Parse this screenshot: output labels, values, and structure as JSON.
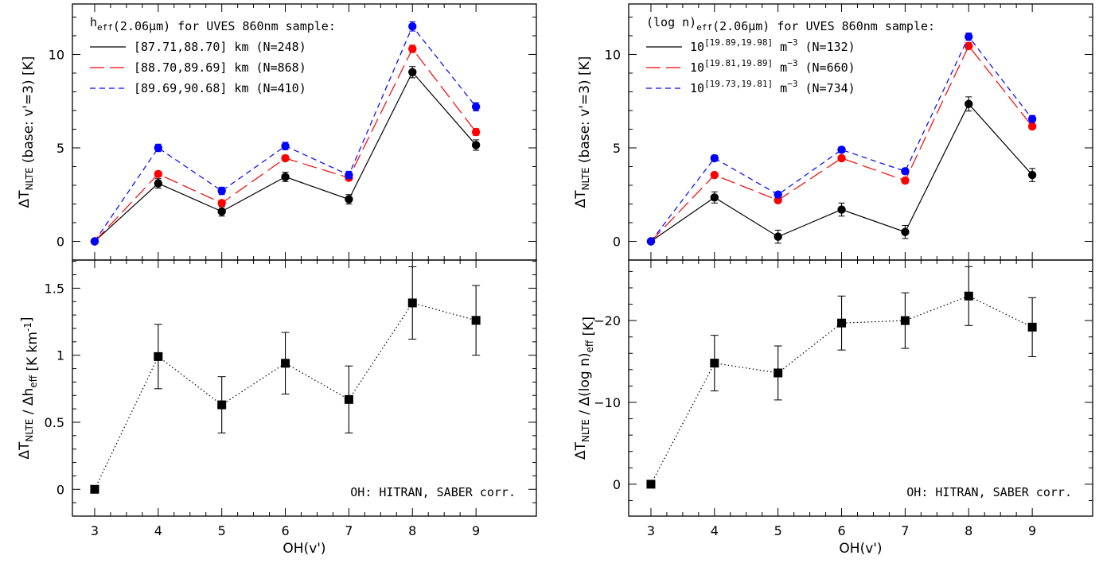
{
  "chart_data": [
    {
      "id": "left-top",
      "type": "line",
      "ylabel": "ΔT_NLTE (base: v'=3) [K]",
      "ylim": [
        -1.0,
        12.7
      ],
      "yticks": [
        0,
        5,
        10
      ],
      "x": [
        3,
        4,
        5,
        6,
        7,
        8,
        9
      ],
      "legend_title": "h_eff(2.06μm) for UVES 860nm sample:",
      "series": [
        {
          "name": "[87.71,88.70] km (N=248)",
          "color": "#000000",
          "dash": "solid",
          "values": [
            0.0,
            3.1,
            1.6,
            3.45,
            2.25,
            9.05,
            5.15
          ],
          "errors": [
            0.12,
            0.25,
            0.25,
            0.25,
            0.25,
            0.3,
            0.28
          ]
        },
        {
          "name": "[88.70,89.69] km (N=868)",
          "color": "#ff0000",
          "dash": "long",
          "values": [
            0.0,
            3.6,
            2.05,
            4.45,
            3.4,
            10.3,
            5.85
          ],
          "errors": [
            0.1,
            0.15,
            0.15,
            0.15,
            0.15,
            0.2,
            0.18
          ]
        },
        {
          "name": "[89.69,90.68] km (N=410)",
          "color": "#0000ff",
          "dash": "short",
          "values": [
            0.0,
            5.0,
            2.7,
            5.1,
            3.55,
            11.5,
            7.2
          ],
          "errors": [
            0.1,
            0.2,
            0.2,
            0.2,
            0.2,
            0.25,
            0.22
          ]
        }
      ]
    },
    {
      "id": "left-bottom",
      "type": "scatter",
      "xlabel": "OH(v')",
      "ylabel": "ΔT_NLTE / Δh_eff [K km^-1]",
      "ylim": [
        -0.2,
        1.71
      ],
      "yticks": [
        0,
        0.5,
        1,
        1.5
      ],
      "yticklabels": [
        "0",
        "0.5",
        "1",
        "1.5"
      ],
      "x": [
        3,
        4,
        5,
        6,
        7,
        8,
        9
      ],
      "values": [
        0.0,
        0.99,
        0.63,
        0.94,
        0.67,
        1.39,
        1.26
      ],
      "errors": [
        0.0,
        0.24,
        0.21,
        0.23,
        0.25,
        0.27,
        0.26
      ],
      "note": "OH: HITRAN, SABER corr."
    },
    {
      "id": "right-top",
      "type": "line",
      "ylabel": "ΔT_NLTE (base: v'=3) [K]",
      "ylim": [
        -1.0,
        12.7
      ],
      "yticks": [
        0,
        5,
        10
      ],
      "x": [
        3,
        4,
        5,
        6,
        7,
        8,
        9
      ],
      "legend_title": "(log n)_eff(2.06μm) for UVES 860nm sample:",
      "series": [
        {
          "name": "10^[19.89,19.98] m^-3 (N=132)",
          "color": "#000000",
          "dash": "solid",
          "values": [
            0.0,
            2.35,
            0.25,
            1.7,
            0.5,
            7.35,
            3.55
          ],
          "errors": [
            0.12,
            0.3,
            0.35,
            0.35,
            0.35,
            0.38,
            0.35
          ]
        },
        {
          "name": "10^[19.81,19.89] m^-3 (N=660)",
          "color": "#ff0000",
          "dash": "long",
          "values": [
            0.0,
            3.55,
            2.2,
            4.45,
            3.25,
            10.45,
            6.15
          ],
          "errors": [
            0.1,
            0.12,
            0.12,
            0.12,
            0.15,
            0.18,
            0.15
          ]
        },
        {
          "name": "10^[19.73,19.81] m^-3 (N=734)",
          "color": "#0000ff",
          "dash": "short",
          "values": [
            0.0,
            4.45,
            2.5,
            4.9,
            3.75,
            10.95,
            6.55
          ],
          "errors": [
            0.1,
            0.15,
            0.12,
            0.15,
            0.15,
            0.2,
            0.18
          ]
        }
      ]
    },
    {
      "id": "right-bottom",
      "type": "scatter",
      "xlabel": "OH(v')",
      "ylabel": "ΔT_NLTE / Δ(log n)_eff [K]",
      "ylim": [
        3.9,
        -27.4
      ],
      "yticks": [
        0,
        -10,
        -20
      ],
      "yticklabels": [
        "0",
        "−10",
        "−20"
      ],
      "x": [
        3,
        4,
        5,
        6,
        7,
        8,
        9
      ],
      "values": [
        0.0,
        -14.8,
        -13.6,
        -19.7,
        -20.0,
        -23.0,
        -19.2
      ],
      "errors": [
        0.0,
        3.4,
        3.3,
        3.3,
        3.4,
        3.6,
        3.6
      ],
      "note": "OH: HITRAN, SABER corr."
    }
  ]
}
